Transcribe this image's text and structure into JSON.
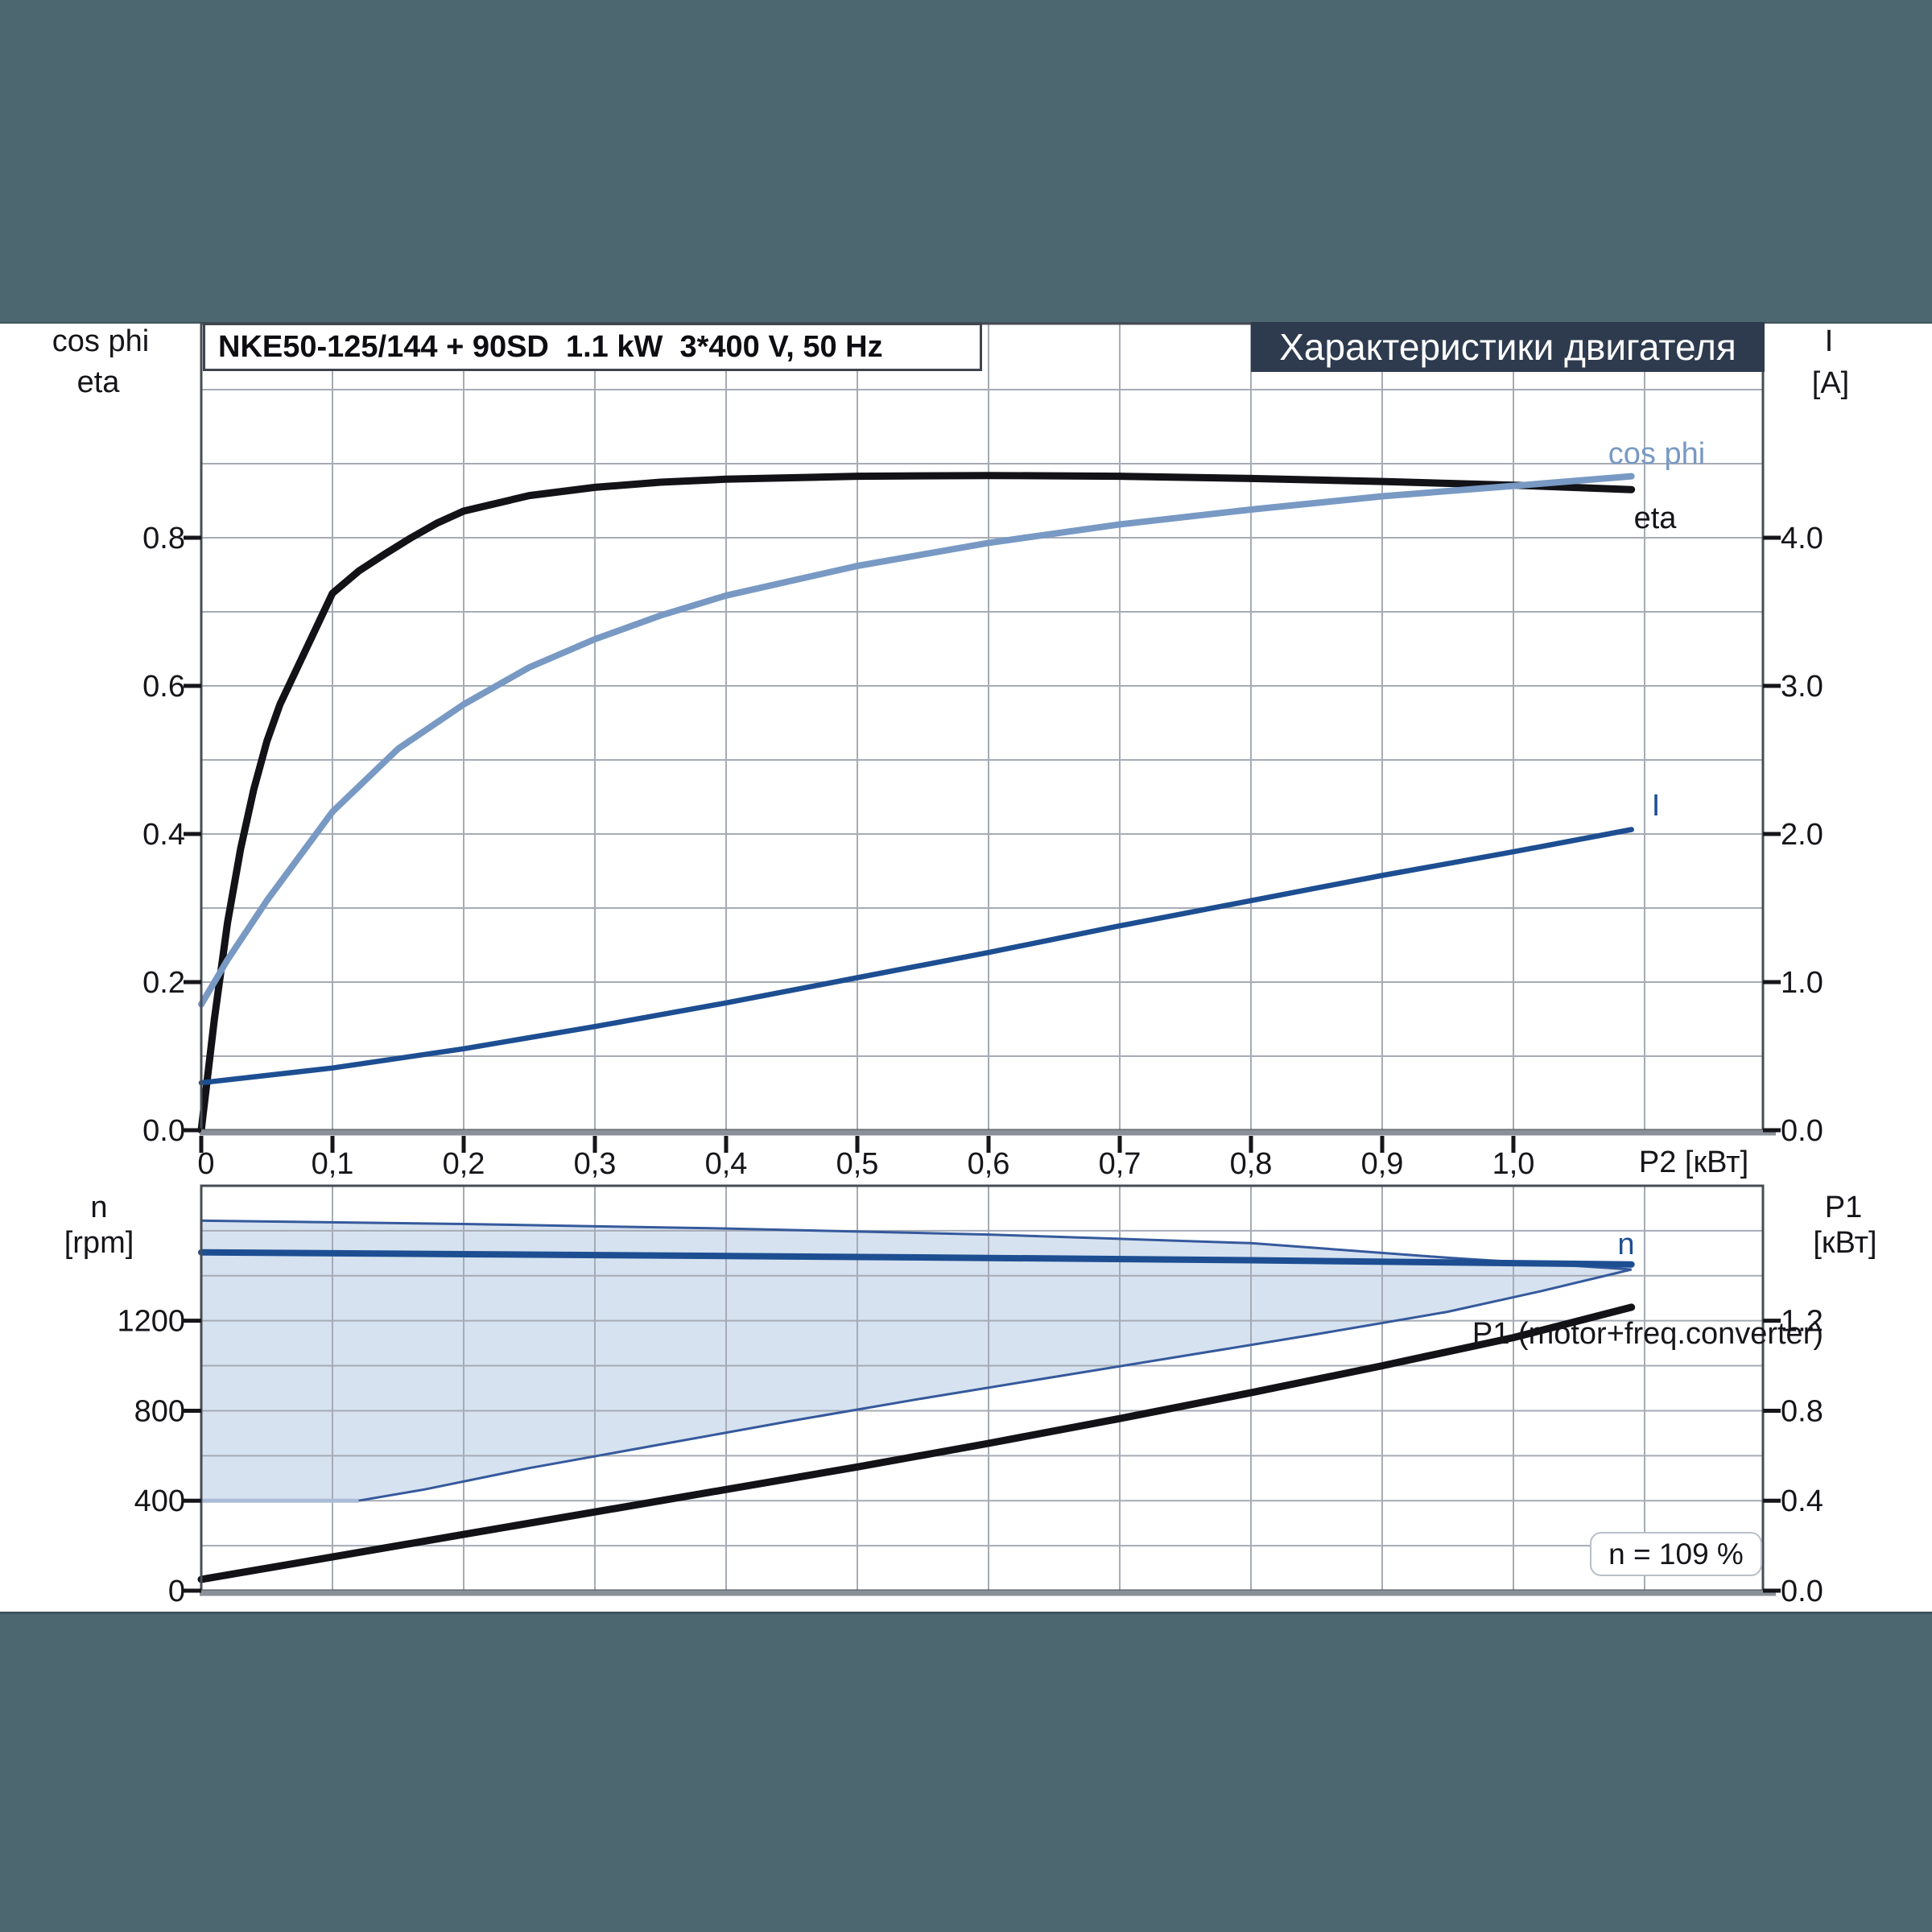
{
  "window": {
    "background": "#4d6771",
    "panel_background": "#ffffff",
    "panel_edge": "#3d525c"
  },
  "header": {
    "title": "Характеристики двигателя",
    "background": "#2e3b4e",
    "text_color": "#ffffff"
  },
  "colors": {
    "eta": "#121217",
    "cos_phi": "#7899c3",
    "current": "#1d4e92",
    "speed": "#1d4e92",
    "p1": "#121217",
    "band_fill": "#d6e2f0",
    "band_edge": "#35599c",
    "band_edge_flat": "#a9bdd6",
    "grid": "#a6abb5",
    "frame": "#474c55",
    "axis_baseline": "#8a9099",
    "tick": "#15151a"
  },
  "chart_data": [
    {
      "type": "line",
      "title": "NKE50-125/144 + 90SD  1.1 kW  3*400 V, 50 Hz",
      "x_axis": {
        "title": "P2 [кВт]",
        "tick_labels": [
          "0",
          "0,1",
          "0,2",
          "0,3",
          "0,4",
          "0,5",
          "0,6",
          "0,7",
          "0,8",
          "0,9",
          "1,0"
        ],
        "tick_values": [
          0,
          0.1,
          0.2,
          0.3,
          0.4,
          0.5,
          0.6,
          0.7,
          0.8,
          0.9,
          1.0
        ],
        "range": [
          0,
          1.19
        ],
        "grid_step": 0.1,
        "grid": true
      },
      "y_axis_left": {
        "title_lines": [
          "cos phi",
          "eta"
        ],
        "tick_labels": [
          "0.0",
          "0.2",
          "0.4",
          "0.6",
          "0.8"
        ],
        "tick_values": [
          0,
          0.2,
          0.4,
          0.6,
          0.8
        ],
        "range": [
          0,
          1.09
        ],
        "grid_step": 0.1
      },
      "y_axis_right": {
        "title_lines": [
          "I",
          "[A]"
        ],
        "tick_labels": [
          "0.0",
          "1.0",
          "2.0",
          "3.0",
          "4.0"
        ],
        "tick_values": [
          0,
          1,
          2,
          3,
          4
        ],
        "range": [
          0,
          5.45
        ]
      },
      "series": [
        {
          "name": "eta",
          "label": "eta",
          "axis": "left",
          "x": [
            0,
            0.01,
            0.02,
            0.03,
            0.04,
            0.05,
            0.06,
            0.08,
            0.1,
            0.12,
            0.14,
            0.16,
            0.18,
            0.2,
            0.25,
            0.3,
            0.35,
            0.4,
            0.5,
            0.6,
            0.7,
            0.8,
            0.9,
            1.0,
            1.09
          ],
          "y": [
            0,
            0.15,
            0.28,
            0.38,
            0.46,
            0.525,
            0.575,
            0.65,
            0.725,
            0.755,
            0.778,
            0.8,
            0.82,
            0.836,
            0.857,
            0.868,
            0.875,
            0.879,
            0.883,
            0.884,
            0.883,
            0.88,
            0.876,
            0.871,
            0.865
          ]
        },
        {
          "name": "cos phi",
          "label": "cos phi",
          "axis": "left",
          "x": [
            0,
            0.02,
            0.05,
            0.1,
            0.15,
            0.2,
            0.25,
            0.3,
            0.35,
            0.4,
            0.5,
            0.6,
            0.7,
            0.8,
            0.9,
            1.0,
            1.09
          ],
          "y": [
            0.17,
            0.23,
            0.31,
            0.43,
            0.515,
            0.575,
            0.625,
            0.663,
            0.695,
            0.722,
            0.762,
            0.793,
            0.818,
            0.838,
            0.856,
            0.87,
            0.883
          ]
        },
        {
          "name": "I",
          "label": "I",
          "axis": "right",
          "x": [
            0,
            0.1,
            0.2,
            0.3,
            0.4,
            0.5,
            0.6,
            0.7,
            0.8,
            0.9,
            1.0,
            1.09
          ],
          "y": [
            0.32,
            0.42,
            0.55,
            0.7,
            0.86,
            1.03,
            1.2,
            1.38,
            1.55,
            1.72,
            1.88,
            2.03
          ]
        }
      ]
    },
    {
      "type": "line",
      "x_axis": {
        "shared_with_top": true,
        "tick_labels": [],
        "range": [
          0,
          1.19
        ],
        "grid_step": 0.1,
        "grid": true
      },
      "y_axis_left": {
        "title_lines": [
          "n",
          "[rpm]"
        ],
        "tick_labels": [
          "0",
          "400",
          "800",
          "1200"
        ],
        "tick_values": [
          0,
          400,
          800,
          1200
        ],
        "range": [
          0,
          1800
        ],
        "grid_step": 200
      },
      "y_axis_right": {
        "title_lines": [
          "P1",
          "[кВт]"
        ],
        "tick_labels": [
          "0.0",
          "0.4",
          "0.8",
          "1.2"
        ],
        "tick_values": [
          0,
          0.4,
          0.8,
          1.2
        ],
        "range": [
          0,
          1.8
        ]
      },
      "annotation": "n = 109 %",
      "band": {
        "name": "speed-control-range",
        "upper_x": [
          0,
          0.2,
          0.4,
          0.6,
          0.8,
          0.95,
          1.05,
          1.09
        ],
        "upper_y": [
          1645,
          1630,
          1610,
          1583,
          1545,
          1480,
          1443,
          1428
        ],
        "lower_x": [
          0,
          0.12,
          0.17,
          0.25,
          0.35,
          0.45,
          0.55,
          0.65,
          0.75,
          0.85,
          0.95,
          1.02,
          1.09
        ],
        "lower_y": [
          400,
          400,
          450,
          545,
          650,
          755,
          855,
          950,
          1045,
          1140,
          1240,
          1330,
          1428
        ],
        "flat_until_x": 0.13
      },
      "series": [
        {
          "name": "n",
          "label": "n",
          "axis": "left",
          "x": [
            0,
            0.2,
            0.4,
            0.6,
            0.8,
            1.0,
            1.09
          ],
          "y": [
            1504,
            1496,
            1488,
            1479,
            1469,
            1456,
            1450
          ]
        },
        {
          "name": "P1 (motor+freq.converter)",
          "label": "P1 (motor+freq.converter)",
          "axis": "right",
          "x": [
            0,
            0.1,
            0.2,
            0.3,
            0.4,
            0.5,
            0.6,
            0.7,
            0.8,
            0.9,
            1.0,
            1.09
          ],
          "y": [
            0.05,
            0.15,
            0.25,
            0.35,
            0.45,
            0.55,
            0.655,
            0.765,
            0.88,
            1.0,
            1.125,
            1.26
          ]
        }
      ]
    }
  ]
}
